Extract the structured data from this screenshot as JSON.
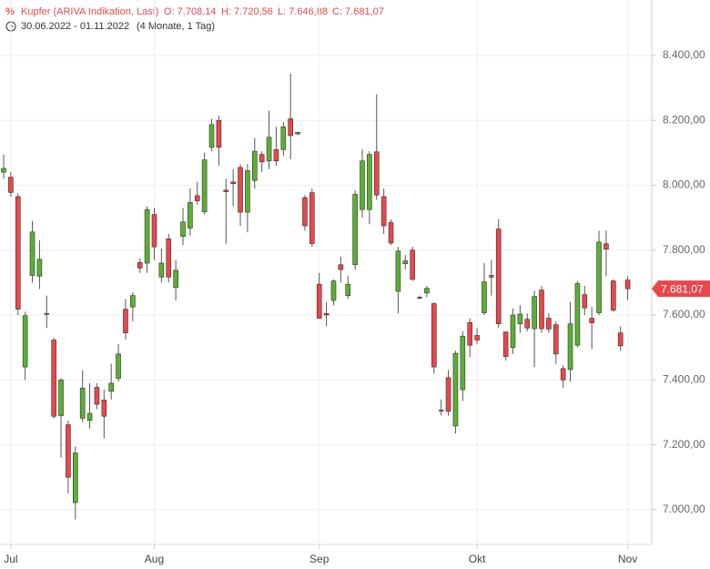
{
  "chart_data": {
    "type": "candlestick",
    "title": "Kupfer (ARIVA Indikation, Last)",
    "ohlc_labels": [
      "O: 7.708,14",
      "H: 7.720,56",
      "L: 7.646,88",
      "C: 7.681,07"
    ],
    "date_range": "30.06.2022 - 01.11.2022",
    "period": "(4 Monate, 1 Tag)",
    "last_label": "7.681,07",
    "categories": [
      null,
      null,
      null,
      null,
      null,
      null,
      null,
      null,
      null,
      null,
      null,
      null,
      null,
      null,
      null,
      null,
      null,
      null,
      null,
      null,
      null,
      null,
      null,
      null,
      null,
      null,
      null,
      null,
      null,
      null,
      null,
      null,
      null,
      null,
      null,
      null,
      null,
      null,
      null,
      null,
      null,
      null,
      null,
      null,
      null,
      null,
      null,
      null,
      null,
      null,
      null,
      null,
      null,
      null,
      null,
      null,
      null,
      null,
      null,
      null,
      null,
      null,
      null,
      null,
      null,
      null,
      null,
      null,
      null,
      null,
      null,
      null,
      null,
      null,
      null,
      null,
      null,
      null,
      null,
      null,
      null,
      null,
      null,
      null,
      null,
      null,
      null,
      null
    ],
    "open": [
      8040,
      8025,
      7965,
      7440,
      7722,
      7720,
      7605,
      7523,
      7290,
      7262,
      7022,
      7282,
      7275,
      7377,
      7338,
      7365,
      7405,
      7618,
      7625,
      7762,
      7760,
      7910,
      7717,
      7835,
      7685,
      7842,
      7868,
      7968,
      7918,
      8117,
      8200,
      7985,
      8010,
      8055,
      7917,
      8015,
      8095,
      8075,
      8110,
      8110,
      8205,
      8158,
      7962,
      7977,
      7695,
      7605,
      7645,
      7755,
      7660,
      7755,
      7925,
      7925,
      8103,
      7965,
      7885,
      7673,
      7758,
      7800,
      7652,
      7668,
      7635,
      7307,
      7407,
      7258,
      7370,
      7577,
      7537,
      7607,
      7722,
      7865,
      7548,
      7500,
      7573,
      7587,
      7558,
      7677,
      7590,
      7570,
      7435,
      7432,
      7507,
      7663,
      7590,
      7607,
      7820,
      7705,
      7545,
      7708
    ],
    "high": [
      8095,
      8040,
      7975,
      7610,
      7890,
      7830,
      7660,
      7530,
      7405,
      7275,
      7195,
      7430,
      7390,
      7390,
      7370,
      7450,
      7510,
      7650,
      7670,
      7775,
      7935,
      7930,
      7805,
      7850,
      7770,
      7930,
      7990,
      8010,
      8100,
      8205,
      8215,
      8020,
      8050,
      8065,
      8065,
      8145,
      8105,
      8230,
      8180,
      8195,
      8345,
      8165,
      7970,
      7990,
      7730,
      7640,
      7710,
      7780,
      7720,
      7985,
      8110,
      8105,
      8280,
      7990,
      7895,
      7810,
      7785,
      7810,
      7660,
      7690,
      7640,
      7340,
      7430,
      7490,
      7550,
      7590,
      7560,
      7760,
      7770,
      7895,
      7550,
      7620,
      7630,
      7605,
      7675,
      7690,
      7605,
      7580,
      7445,
      7640,
      7705,
      7690,
      7625,
      7860,
      7860,
      7710,
      7565,
      7720
    ],
    "low": [
      8020,
      7965,
      7600,
      7400,
      7700,
      7680,
      7560,
      7280,
      7160,
      7050,
      6970,
      7270,
      7250,
      7310,
      7220,
      7340,
      7395,
      7525,
      7580,
      7730,
      7730,
      7770,
      7700,
      7700,
      7645,
      7815,
      7845,
      7940,
      7910,
      8105,
      8060,
      7820,
      7935,
      7875,
      7855,
      7990,
      8040,
      8050,
      8060,
      8090,
      8080,
      8155,
      7860,
      7810,
      7590,
      7565,
      7630,
      7700,
      7650,
      7740,
      7900,
      7880,
      7955,
      7850,
      7815,
      7605,
      7740,
      7705,
      7648,
      7655,
      7420,
      7290,
      7290,
      7235,
      7335,
      7470,
      7510,
      7600,
      7660,
      7560,
      7460,
      7480,
      7545,
      7550,
      7440,
      7545,
      7545,
      7450,
      7375,
      7395,
      7500,
      7600,
      7495,
      7600,
      7720,
      7610,
      7490,
      7647
    ],
    "close": [
      8052,
      7978,
      7618,
      7598,
      7856,
      7772,
      7605,
      7288,
      7400,
      7100,
      7175,
      7375,
      7297,
      7325,
      7288,
      7390,
      7480,
      7545,
      7660,
      7745,
      7925,
      7810,
      7760,
      7717,
      7738,
      7887,
      7947,
      7952,
      8078,
      8187,
      8117,
      7980,
      8005,
      7917,
      8045,
      8105,
      8072,
      8148,
      8075,
      8180,
      8153,
      8163,
      7875,
      7820,
      7590,
      7600,
      7705,
      7740,
      7695,
      7972,
      8075,
      8095,
      7970,
      7875,
      7822,
      7797,
      7767,
      7710,
      7655,
      7682,
      7440,
      7305,
      7303,
      7482,
      7535,
      7507,
      7523,
      7702,
      7717,
      7573,
      7472,
      7600,
      7603,
      7560,
      7657,
      7558,
      7557,
      7480,
      7400,
      7573,
      7697,
      7622,
      7576,
      7825,
      7803,
      7615,
      7505,
      7681
    ],
    "up_color": "#5bb033",
    "down_color": "#e8474c",
    "title_color": "#e0494d",
    "ylim": [
      6893,
      8571
    ],
    "yticks": [
      {
        "value": 7000,
        "label": "7.000,00"
      },
      {
        "value": 7200,
        "label": "7.200,00"
      },
      {
        "value": 7400,
        "label": "7.400,00"
      },
      {
        "value": 7600,
        "label": "7.600,00"
      },
      {
        "value": 7800,
        "label": "7.800,00"
      },
      {
        "value": 8000,
        "label": "8.000,00"
      },
      {
        "value": 8200,
        "label": "8.200,00"
      },
      {
        "value": 8400,
        "label": "8.400,00"
      }
    ],
    "xlim": [
      -0.5,
      90.5
    ],
    "xticks": [
      {
        "value": 1,
        "label": "Jul"
      },
      {
        "value": 21,
        "label": "Aug"
      },
      {
        "value": 44,
        "label": "Sep"
      },
      {
        "value": 66,
        "label": "Okt"
      },
      {
        "value": 87,
        "label": "Nov"
      }
    ],
    "grid": true
  }
}
